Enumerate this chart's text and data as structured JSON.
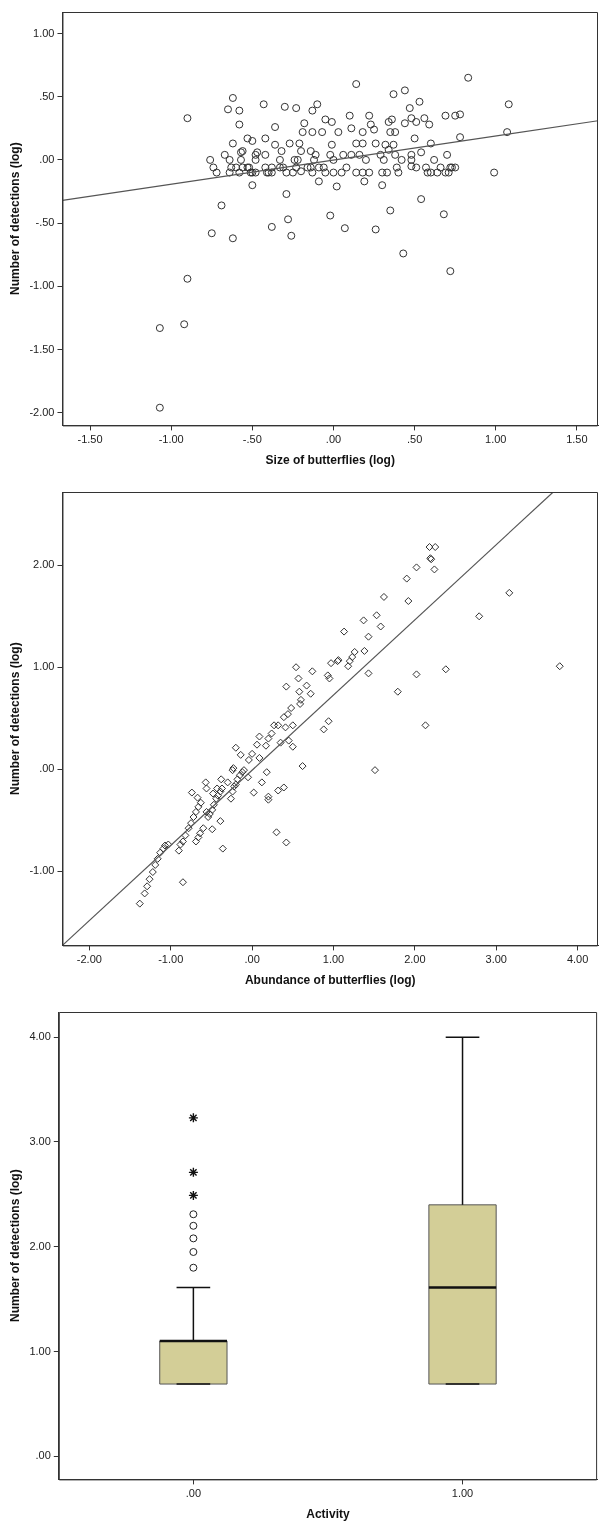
{
  "chart_data": [
    {
      "type": "scatter",
      "xlabel": "Size of butterflies (log)",
      "ylabel": "Number of detections (log)",
      "xlim": [
        -1.67,
        1.63
      ],
      "ylim": [
        -2.1,
        1.17
      ],
      "xticks": [
        {
          "value": -1.5,
          "label": "-1.50"
        },
        {
          "value": -1,
          "label": "-1.00"
        },
        {
          "value": -0.5,
          "label": "-.50"
        },
        {
          "value": 0,
          "label": ".00"
        },
        {
          "value": 0.5,
          "label": ".50"
        },
        {
          "value": 1,
          "label": "1.00"
        },
        {
          "value": 1.5,
          "label": "1.50"
        }
      ],
      "yticks": [
        {
          "value": -2,
          "label": "-2.00"
        },
        {
          "value": -1.5,
          "label": "-1.50"
        },
        {
          "value": -1,
          "label": "-1.00"
        },
        {
          "value": -0.5,
          "label": "-.50"
        },
        {
          "value": 0,
          "label": ".00"
        },
        {
          "value": 0.5,
          "label": ".50"
        },
        {
          "value": 1,
          "label": "1.00"
        }
      ],
      "series": [
        {
          "marker": "circle",
          "color": "#333333",
          "x": [
            -0.9,
            -1.07,
            -0.92,
            -1.07,
            -0.9,
            -0.69,
            -0.75,
            -0.62,
            -0.76,
            -0.74,
            -0.72,
            -0.67,
            -0.65,
            -0.62,
            -0.58,
            -0.58,
            -0.62,
            -0.64,
            -0.64,
            -0.63,
            -0.6,
            -0.58,
            -0.57,
            -0.57,
            -0.56,
            -0.56,
            -0.53,
            -0.53,
            -0.52,
            -0.5,
            -0.51,
            -0.5,
            -0.48,
            -0.48,
            -0.48,
            -0.47,
            -0.5,
            -0.43,
            -0.42,
            -0.42,
            -0.42,
            -0.41,
            -0.4,
            -0.38,
            -0.38,
            -0.36,
            -0.36,
            -0.33,
            -0.32,
            -0.33,
            -0.31,
            -0.3,
            -0.29,
            -0.29,
            -0.28,
            -0.38,
            -0.27,
            -0.26,
            -0.25,
            -0.24,
            -0.23,
            -0.23,
            -0.22,
            -0.21,
            -0.2,
            -0.2,
            -0.19,
            -0.18,
            -0.16,
            -0.14,
            -0.14,
            -0.13,
            -0.13,
            -0.12,
            -0.13,
            -0.11,
            -0.1,
            -0.09,
            -0.09,
            -0.07,
            -0.06,
            -0.05,
            -0.05,
            -0.02,
            -0.01,
            -0.01,
            0,
            0,
            -0.02,
            0.02,
            0.03,
            0.05,
            0.06,
            0.07,
            0.08,
            0.1,
            0.11,
            0.11,
            0.14,
            0.14,
            0.14,
            0.16,
            0.18,
            0.18,
            0.18,
            0.19,
            0.2,
            0.22,
            0.22,
            0.23,
            0.25,
            0.26,
            0.26,
            0.29,
            0.3,
            0.3,
            0.31,
            0.32,
            0.33,
            0.34,
            0.34,
            0.35,
            0.35,
            0.36,
            0.37,
            0.37,
            0.38,
            0.38,
            0.39,
            0.4,
            0.42,
            0.43,
            0.44,
            0.44,
            0.47,
            0.48,
            0.48,
            0.48,
            0.48,
            0.5,
            0.51,
            0.51,
            0.53,
            0.54,
            0.54,
            0.56,
            0.57,
            0.58,
            0.59,
            0.6,
            0.6,
            0.62,
            0.64,
            0.66,
            0.68,
            0.69,
            0.69,
            0.7,
            0.71,
            0.72,
            0.72,
            0.73,
            0.75,
            0.75,
            0.78,
            0.78,
            0.83,
            0.99,
            1.07,
            1.08
          ],
          "values": [
            0.33,
            -1.33,
            -1.3,
            -1.96,
            -0.94,
            -0.36,
            -0.58,
            -0.62,
            0,
            -0.06,
            -0.1,
            0.04,
            0.4,
            0.49,
            0.39,
            0.28,
            0.13,
            0,
            -0.1,
            -0.06,
            -0.06,
            -0.1,
            0,
            0.06,
            0.07,
            -0.06,
            -0.06,
            0.17,
            -0.06,
            0.15,
            -0.1,
            -0.1,
            -0.1,
            0,
            0.04,
            0.06,
            -0.2,
            0.44,
            0.17,
            0.04,
            -0.06,
            -0.1,
            -0.1,
            -0.06,
            -0.1,
            0.12,
            0.26,
            0,
            0.07,
            -0.06,
            -0.06,
            0.42,
            -0.1,
            -0.27,
            -0.47,
            -0.53,
            0.13,
            -0.6,
            -0.1,
            0,
            0.41,
            -0.06,
            0,
            0.13,
            -0.09,
            0.07,
            0.22,
            0.29,
            -0.06,
            -0.06,
            0.07,
            0.22,
            0.39,
            0,
            -0.1,
            0.04,
            0.44,
            -0.17,
            -0.06,
            0.22,
            -0.06,
            -0.1,
            0.32,
            0.04,
            0.3,
            0.12,
            0,
            -0.1,
            -0.44,
            -0.21,
            0.22,
            -0.1,
            0.04,
            -0.54,
            -0.06,
            0.35,
            0.25,
            0.04,
            0.6,
            0.13,
            -0.1,
            0.04,
            0.13,
            0.22,
            -0.1,
            -0.17,
            0,
            -0.1,
            0.35,
            0.28,
            0.24,
            0.13,
            -0.55,
            0.04,
            -0.1,
            -0.2,
            0,
            0.12,
            -0.1,
            0.08,
            0.3,
            0.22,
            -0.4,
            0.32,
            0.12,
            0.52,
            0.04,
            0.22,
            -0.06,
            -0.1,
            0,
            -0.74,
            0.55,
            0.29,
            0.41,
            -0.05,
            0,
            0.04,
            0.33,
            0.17,
            -0.06,
            0.3,
            0.46,
            0.06,
            -0.31,
            0.33,
            -0.06,
            -0.1,
            0.28,
            0.13,
            -0.1,
            0,
            -0.1,
            -0.06,
            -0.43,
            0.35,
            -0.1,
            0.04,
            -0.1,
            -0.06,
            -0.88,
            -0.06,
            0.35,
            -0.06,
            0.36,
            0.18,
            0.65,
            -0.1,
            0.22,
            0.44
          ]
        },
        {
          "type": "line",
          "color": "#555555",
          "x": [
            -1.67,
            1.63
          ],
          "values": [
            -0.32,
            0.31
          ]
        }
      ]
    },
    {
      "type": "scatter",
      "xlabel": "Abundance of butterflies (log)",
      "ylabel": "Number of detections (log)",
      "xlim": [
        -2.33,
        4.25
      ],
      "ylim": [
        -1.73,
        2.72
      ],
      "xticks": [
        {
          "value": -2,
          "label": "-2.00"
        },
        {
          "value": -1,
          "label": "-1.00"
        },
        {
          "value": 0,
          "label": ".00"
        },
        {
          "value": 1,
          "label": "1.00"
        },
        {
          "value": 2,
          "label": "2.00"
        },
        {
          "value": 3,
          "label": "3.00"
        },
        {
          "value": 4,
          "label": "4.00"
        }
      ],
      "yticks": [
        {
          "value": -1,
          "label": "-1.00"
        },
        {
          "value": 0,
          "label": ".00"
        },
        {
          "value": 1,
          "label": "1.00"
        },
        {
          "value": 2,
          "label": "2.00"
        }
      ],
      "series": [
        {
          "marker": "diamond",
          "color": "#333333",
          "x": [
            -1.38,
            -1.32,
            -1.29,
            -1.26,
            -1.22,
            -1.19,
            -1.16,
            -1.13,
            -1.09,
            -1.07,
            -1.03,
            -0.85,
            -0.9,
            -0.88,
            -0.85,
            -0.82,
            -0.78,
            -0.75,
            -0.72,
            -0.69,
            -0.66,
            -0.63,
            -0.74,
            -0.67,
            -0.69,
            -0.66,
            -0.64,
            -0.6,
            -0.56,
            -0.54,
            -0.52,
            -0.49,
            -0.47,
            -0.44,
            -0.42,
            -0.39,
            -0.37,
            -0.49,
            -0.39,
            -0.36,
            -0.57,
            -0.56,
            -0.48,
            -0.43,
            -0.38,
            -0.3,
            -0.26,
            -0.24,
            -0.22,
            -0.2,
            -0.18,
            -0.15,
            -0.12,
            -0.1,
            -0.2,
            -0.14,
            -0.23,
            -0.24,
            -0.05,
            -0.04,
            0.0,
            0.02,
            0.06,
            0.09,
            0.09,
            0.12,
            0.17,
            0.18,
            0.2,
            0.2,
            0.2,
            0.24,
            0.27,
            0.3,
            0.32,
            0.32,
            0.35,
            0.39,
            0.39,
            0.41,
            0.42,
            0.42,
            0.44,
            0.45,
            0.48,
            0.5,
            0.5,
            0.54,
            0.57,
            0.58,
            0.59,
            0.6,
            0.62,
            0.67,
            0.72,
            0.74,
            0.88,
            0.93,
            0.94,
            0.95,
            0.97,
            1.05,
            1.06,
            1.13,
            1.18,
            1.2,
            1.23,
            1.26,
            1.37,
            1.38,
            1.43,
            1.43,
            1.51,
            1.53,
            1.58,
            1.62,
            1.79,
            1.9,
            1.92,
            2.02,
            2.02,
            2.13,
            2.18,
            2.19,
            2.2,
            2.24,
            2.25,
            2.38,
            2.79,
            3.16,
            3.78
          ],
          "values": [
            -1.32,
            -1.22,
            -1.15,
            -1.08,
            -1.01,
            -0.94,
            -0.88,
            -0.82,
            -0.78,
            -0.75,
            -0.74,
            -1.11,
            -0.8,
            -0.74,
            -0.71,
            -0.65,
            -0.58,
            -0.53,
            -0.47,
            -0.42,
            -0.37,
            -0.33,
            -0.23,
            -0.28,
            -0.71,
            -0.67,
            -0.63,
            -0.58,
            -0.42,
            -0.47,
            -0.44,
            -0.4,
            -0.35,
            -0.29,
            -0.26,
            -0.22,
            -0.19,
            -0.59,
            -0.51,
            -0.78,
            -0.13,
            -0.19,
            -0.24,
            -0.19,
            -0.1,
            -0.13,
            -0.29,
            -0.22,
            -0.17,
            -0.15,
            -0.1,
            -0.06,
            -0.03,
            -0.01,
            0.21,
            0.14,
            0.01,
            -0.01,
            -0.08,
            0.09,
            0.15,
            -0.23,
            0.24,
            0.32,
            0.11,
            -0.13,
            0.23,
            -0.03,
            0.3,
            -0.27,
            -0.3,
            0.35,
            0.43,
            -0.62,
            -0.21,
            0.43,
            0.26,
            -0.18,
            0.51,
            0.41,
            0.81,
            -0.72,
            0.54,
            0.28,
            0.6,
            0.43,
            0.22,
            1.0,
            0.89,
            0.76,
            0.64,
            0.68,
            0.03,
            0.82,
            0.74,
            0.96,
            0.39,
            0.92,
            0.47,
            0.89,
            1.04,
            1.06,
            1.07,
            1.35,
            1.01,
            1.06,
            1.1,
            1.15,
            1.46,
            1.16,
            1.3,
            0.94,
            -0.01,
            1.51,
            1.4,
            1.69,
            0.76,
            1.87,
            1.65,
            0.93,
            1.98,
            0.43,
            2.18,
            2.07,
            2.06,
            1.96,
            2.18,
            0.98,
            1.5,
            1.73,
            1.01
          ]
        },
        {
          "type": "line",
          "color": "#555555",
          "x": [
            -2.33,
            3.7
          ],
          "values": [
            -1.73,
            2.72
          ]
        }
      ]
    },
    {
      "type": "box",
      "xlabel": "Activity",
      "ylabel": "Number of detections (log)",
      "categories": [
        ".00",
        "1.00"
      ],
      "color": "#d3ce97",
      "ylim": [
        -0.22,
        4.24
      ],
      "yticks": [
        {
          "value": 0,
          "label": ".00"
        },
        {
          "value": 1,
          "label": "1.00"
        },
        {
          "value": 2,
          "label": "2.00"
        },
        {
          "value": 3,
          "label": "3.00"
        },
        {
          "value": 4,
          "label": "4.00"
        }
      ],
      "boxes": [
        {
          "low": 0.69,
          "q1": 0.69,
          "median": 1.1,
          "q3": 1.1,
          "high": 1.61,
          "outliers": [
            1.8,
            1.95,
            2.08,
            2.2,
            2.31,
            2.49,
            2.71,
            3.23
          ]
        },
        {
          "low": 0.69,
          "q1": 0.69,
          "median": 1.61,
          "q3": 2.4,
          "high": 4.0
        }
      ]
    }
  ]
}
